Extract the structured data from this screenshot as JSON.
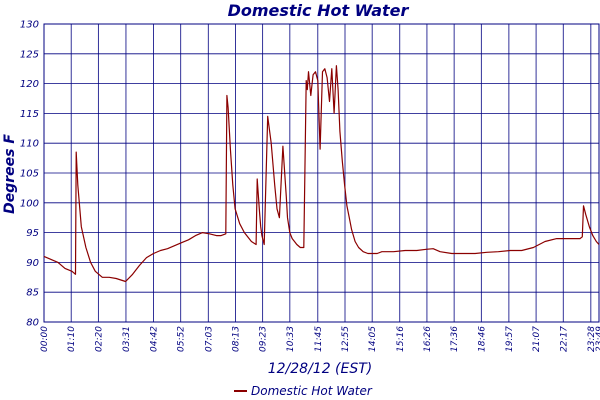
{
  "chart_data": {
    "type": "line",
    "title": "Domestic Hot Water",
    "xlabel": "12/28/12 (EST)",
    "ylabel": "Degrees F",
    "ylim": [
      80,
      130
    ],
    "yticks": [
      80,
      85,
      90,
      95,
      100,
      105,
      110,
      115,
      120,
      125,
      130
    ],
    "grid": true,
    "legend_position": "bottom-center",
    "colors": {
      "line": "#8b0000",
      "grid": "#000080",
      "text": "#000080"
    },
    "x_ticks": [
      "00:00",
      "01:10",
      "02:20",
      "03:31",
      "04:42",
      "05:52",
      "07:03",
      "08:13",
      "09:23",
      "10:33",
      "11:45",
      "12:55",
      "14:05",
      "15:16",
      "16:26",
      "17:36",
      "18:46",
      "19:57",
      "21:07",
      "22:17",
      "23:28",
      "23:49"
    ],
    "x_tick_hours": [
      0,
      1.167,
      2.333,
      3.517,
      4.7,
      5.867,
      7.05,
      8.217,
      9.383,
      10.55,
      11.75,
      12.917,
      14.083,
      15.267,
      16.433,
      17.6,
      18.767,
      19.95,
      21.117,
      22.283,
      23.467,
      23.817
    ],
    "xlim_hours": [
      0,
      23.817
    ],
    "series": [
      {
        "name": "Domestic Hot Water",
        "x_hours": [
          0,
          0.3,
          0.6,
          0.9,
          1.2,
          1.35,
          1.38,
          1.45,
          1.6,
          1.8,
          2.0,
          2.2,
          2.5,
          2.8,
          3.1,
          3.5,
          3.8,
          4.1,
          4.4,
          4.7,
          5.0,
          5.3,
          5.6,
          5.9,
          6.2,
          6.5,
          6.8,
          7.1,
          7.4,
          7.6,
          7.8,
          7.85,
          7.9,
          8.0,
          8.1,
          8.2,
          8.4,
          8.6,
          8.9,
          9.1,
          9.15,
          9.25,
          9.3,
          9.35,
          9.45,
          9.6,
          9.75,
          9.9,
          10.0,
          10.1,
          10.25,
          10.4,
          10.45,
          10.55,
          10.65,
          10.75,
          10.85,
          11.0,
          11.15,
          11.25,
          11.3,
          11.35,
          11.45,
          11.55,
          11.65,
          11.75,
          11.85,
          11.95,
          12.05,
          12.15,
          12.25,
          12.35,
          12.45,
          12.55,
          12.62,
          12.7,
          12.8,
          12.9,
          13.0,
          13.1,
          13.2,
          13.35,
          13.5,
          13.7,
          13.9,
          14.1,
          14.3,
          14.5,
          15.0,
          15.5,
          16.0,
          16.4,
          16.7,
          17.0,
          17.5,
          18.0,
          18.5,
          19.0,
          19.5,
          20.0,
          20.5,
          21.0,
          21.5,
          22.0,
          22.5,
          23.0,
          23.1,
          23.15,
          23.25,
          23.4,
          23.55,
          23.7,
          23.817
        ],
        "values": [
          91,
          90.5,
          90,
          89,
          88.5,
          88,
          108.5,
          103,
          96,
          92.5,
          90,
          88.5,
          87.5,
          87.5,
          87.3,
          86.8,
          88,
          89.5,
          90.8,
          91.5,
          92,
          92.3,
          92.8,
          93.3,
          93.8,
          94.5,
          95,
          94.8,
          94.5,
          94.5,
          94.8,
          118,
          116,
          109,
          103,
          99,
          96.5,
          95,
          93.5,
          93,
          104,
          98.5,
          96,
          94.5,
          93,
          114.5,
          110,
          103,
          99,
          97.5,
          109.5,
          101,
          97.5,
          95,
          94,
          93.5,
          93,
          92.5,
          92.5,
          120.5,
          119,
          122,
          118,
          121.5,
          122,
          120.5,
          109,
          122,
          122.5,
          121,
          117,
          122.5,
          115,
          123,
          119,
          112,
          107,
          103,
          99.5,
          97.5,
          95.5,
          93.5,
          92.5,
          91.8,
          91.5,
          91.5,
          91.5,
          91.8,
          91.8,
          92,
          92,
          92.2,
          92.3,
          91.8,
          91.5,
          91.5,
          91.5,
          91.7,
          91.8,
          92,
          92,
          92.5,
          93.5,
          94,
          94,
          94,
          94.3,
          99.5,
          98,
          96,
          94.5,
          93.5,
          93
        ]
      }
    ]
  }
}
